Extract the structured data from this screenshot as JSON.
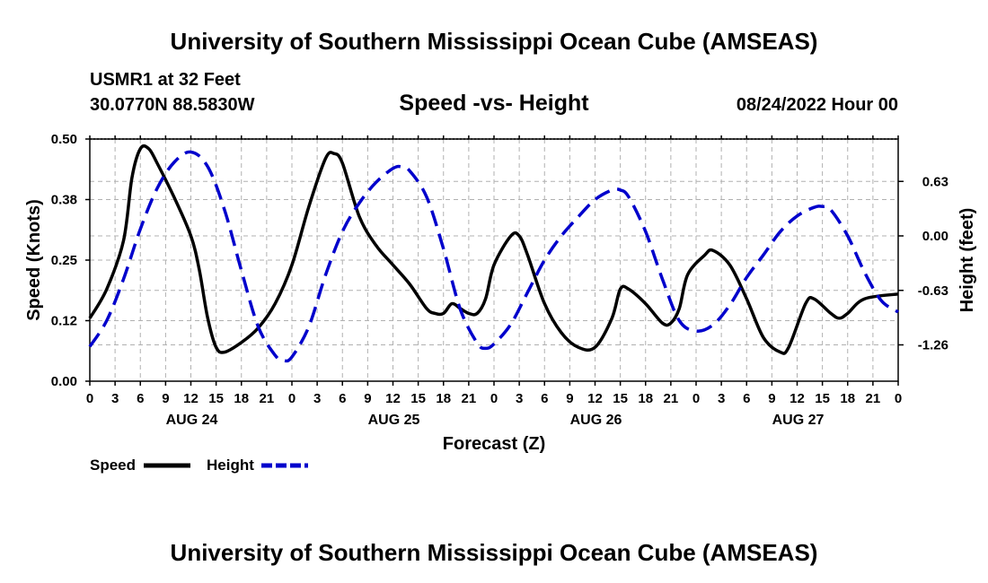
{
  "header": {
    "title": "University of Southern Mississippi Ocean Cube (AMSEAS)",
    "station": "USMR1 at 32 Feet",
    "coords": "30.0770N  88.5830W",
    "subtitle": "Speed -vs- Height",
    "date": "08/24/2022 Hour 00"
  },
  "footer": {
    "title": "University of Southern Mississippi Ocean Cube (AMSEAS)"
  },
  "legend": {
    "speed_label": "Speed",
    "height_label": "Height"
  },
  "colors": {
    "speed": "#000000",
    "height": "#0000cc",
    "grid": "#b0b0b0"
  },
  "chart_data": {
    "type": "line",
    "title": "Speed -vs- Height",
    "xlabel": "Forecast (Z)",
    "ylabel": "Speed (Knots)",
    "y2label": "Height (feet)",
    "xlim": [
      0,
      96
    ],
    "ylim": [
      0,
      0.5
    ],
    "y2lim": [
      -1.68,
      1.12
    ],
    "x_ticks": [
      0,
      3,
      6,
      9,
      12,
      15,
      18,
      21,
      24,
      27,
      30,
      33,
      36,
      39,
      42,
      45,
      48,
      51,
      54,
      57,
      60,
      63,
      66,
      69,
      72,
      75,
      78,
      81,
      84,
      87,
      90,
      93,
      96
    ],
    "x_tick_labels": [
      "0",
      "3",
      "6",
      "9",
      "12",
      "15",
      "18",
      "21",
      "0",
      "3",
      "6",
      "9",
      "12",
      "15",
      "18",
      "21",
      "0",
      "3",
      "6",
      "9",
      "12",
      "15",
      "18",
      "21",
      "0",
      "3",
      "6",
      "9",
      "12",
      "15",
      "18",
      "21",
      "0"
    ],
    "day_labels": [
      {
        "x": 12,
        "label": "AUG 24"
      },
      {
        "x": 36,
        "label": "AUG 25"
      },
      {
        "x": 60,
        "label": "AUG 26"
      },
      {
        "x": 84,
        "label": "AUG 27"
      }
    ],
    "y_ticks": [
      0.0,
      0.125,
      0.25,
      0.375,
      0.5
    ],
    "y_tick_labels": [
      "0.00",
      "0.12",
      "0.25",
      "0.38",
      "0.50"
    ],
    "y2_ticks": [
      0.63,
      0.0,
      -0.63,
      -1.26
    ],
    "y2_tick_labels": [
      "0.63",
      "0.00",
      "-0.63",
      "-1.26"
    ],
    "grid": true,
    "legend": "bottom-left",
    "series": [
      {
        "name": "Speed",
        "axis": "left",
        "style": "solid",
        "points": [
          [
            0,
            0.13
          ],
          [
            2,
            0.19
          ],
          [
            4,
            0.29
          ],
          [
            5,
            0.42
          ],
          [
            6,
            0.48
          ],
          [
            7,
            0.48
          ],
          [
            8,
            0.45
          ],
          [
            10,
            0.38
          ],
          [
            12,
            0.3
          ],
          [
            13,
            0.23
          ],
          [
            14,
            0.13
          ],
          [
            15,
            0.07
          ],
          [
            16,
            0.06
          ],
          [
            18,
            0.08
          ],
          [
            20,
            0.11
          ],
          [
            22,
            0.16
          ],
          [
            24,
            0.24
          ],
          [
            26,
            0.36
          ],
          [
            28,
            0.46
          ],
          [
            29,
            0.47
          ],
          [
            30,
            0.45
          ],
          [
            32,
            0.34
          ],
          [
            34,
            0.28
          ],
          [
            36,
            0.24
          ],
          [
            38,
            0.2
          ],
          [
            40,
            0.15
          ],
          [
            41,
            0.14
          ],
          [
            42,
            0.14
          ],
          [
            43,
            0.16
          ],
          [
            44,
            0.15
          ],
          [
            45,
            0.14
          ],
          [
            46,
            0.14
          ],
          [
            47,
            0.17
          ],
          [
            48,
            0.24
          ],
          [
            50,
            0.3
          ],
          [
            51,
            0.3
          ],
          [
            52,
            0.26
          ],
          [
            54,
            0.16
          ],
          [
            56,
            0.1
          ],
          [
            58,
            0.07
          ],
          [
            60,
            0.07
          ],
          [
            62,
            0.13
          ],
          [
            63,
            0.19
          ],
          [
            64,
            0.19
          ],
          [
            66,
            0.16
          ],
          [
            68,
            0.12
          ],
          [
            69,
            0.12
          ],
          [
            70,
            0.15
          ],
          [
            71,
            0.22
          ],
          [
            73,
            0.26
          ],
          [
            74,
            0.27
          ],
          [
            76,
            0.24
          ],
          [
            78,
            0.17
          ],
          [
            80,
            0.09
          ],
          [
            82,
            0.06
          ],
          [
            83,
            0.07
          ],
          [
            85,
            0.16
          ],
          [
            86,
            0.17
          ],
          [
            88,
            0.14
          ],
          [
            89,
            0.13
          ],
          [
            90,
            0.14
          ],
          [
            92,
            0.17
          ],
          [
            96,
            0.18
          ]
        ]
      },
      {
        "name": "Height",
        "axis": "right",
        "style": "dashed",
        "points": [
          [
            0,
            -1.28
          ],
          [
            2,
            -0.98
          ],
          [
            4,
            -0.5
          ],
          [
            6,
            0.08
          ],
          [
            8,
            0.55
          ],
          [
            10,
            0.85
          ],
          [
            12,
            0.97
          ],
          [
            14,
            0.8
          ],
          [
            16,
            0.3
          ],
          [
            18,
            -0.4
          ],
          [
            20,
            -1.05
          ],
          [
            22,
            -1.38
          ],
          [
            23,
            -1.44
          ],
          [
            24,
            -1.4
          ],
          [
            26,
            -1.05
          ],
          [
            28,
            -0.45
          ],
          [
            30,
            0.05
          ],
          [
            32,
            0.38
          ],
          [
            34,
            0.62
          ],
          [
            36,
            0.78
          ],
          [
            37,
            0.8
          ],
          [
            38,
            0.75
          ],
          [
            40,
            0.45
          ],
          [
            42,
            -0.15
          ],
          [
            44,
            -0.85
          ],
          [
            46,
            -1.24
          ],
          [
            47,
            -1.3
          ],
          [
            48,
            -1.25
          ],
          [
            50,
            -1.02
          ],
          [
            52,
            -0.65
          ],
          [
            54,
            -0.28
          ],
          [
            56,
            0.0
          ],
          [
            58,
            0.22
          ],
          [
            60,
            0.42
          ],
          [
            62,
            0.53
          ],
          [
            63,
            0.53
          ],
          [
            64,
            0.45
          ],
          [
            66,
            0.05
          ],
          [
            68,
            -0.5
          ],
          [
            70,
            -0.98
          ],
          [
            72,
            -1.1
          ],
          [
            74,
            -1.03
          ],
          [
            76,
            -0.8
          ],
          [
            78,
            -0.48
          ],
          [
            80,
            -0.22
          ],
          [
            82,
            0.05
          ],
          [
            84,
            0.23
          ],
          [
            86,
            0.33
          ],
          [
            87,
            0.34
          ],
          [
            88,
            0.3
          ],
          [
            90,
            0.0
          ],
          [
            92,
            -0.42
          ],
          [
            94,
            -0.75
          ],
          [
            96,
            -0.88
          ]
        ]
      }
    ]
  }
}
